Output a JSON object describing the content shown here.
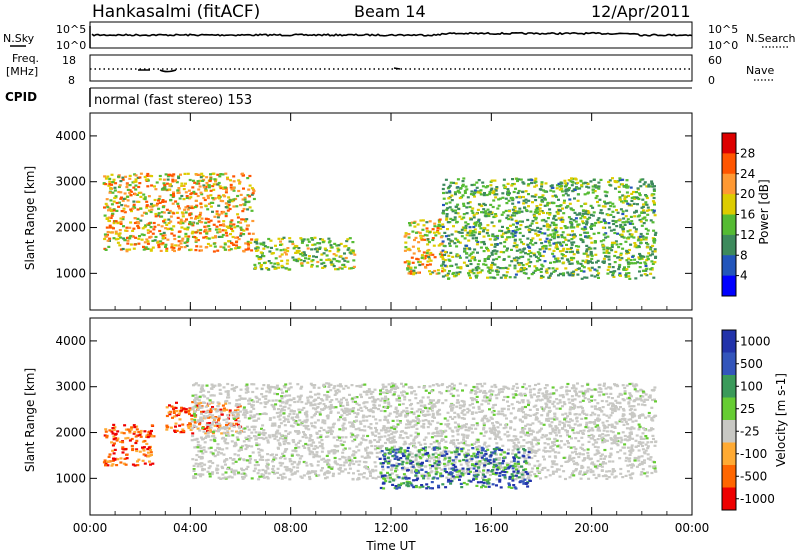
{
  "header": {
    "station": "Hankasalmi (fitACF)",
    "beam": "Beam 14",
    "date": "12/Apr/2011"
  },
  "noise_panel": {
    "left_label": "N.Sky",
    "right_label": "N.Search",
    "left_ticks": [
      "10^5",
      "10^0"
    ],
    "right_ticks": [
      "10^5",
      "10^0"
    ]
  },
  "freq_panel": {
    "left_label_1": "Freq.",
    "left_label_2": "[MHz]",
    "right_label": "Nave",
    "left_ticks": [
      "18",
      "8"
    ],
    "right_ticks": [
      "60",
      "0"
    ]
  },
  "cpid": {
    "label": "CPID",
    "value": "normal (fast stereo) 153"
  },
  "colors": {
    "power_scale": [
      "#0000ff",
      "#2255bb",
      "#3d8a5c",
      "#55bb33",
      "#ddcc00",
      "#ff9933",
      "#ff5500",
      "#dd0000"
    ],
    "velocity_scale": [
      "#2233aa",
      "#3355bb",
      "#3a9a5a",
      "#66cc33",
      "#c8c8c4",
      "#ffaa33",
      "#ff6600",
      "#ee0000"
    ],
    "ground_scatter": "#c8c8c4"
  },
  "chart_data": [
    {
      "type": "heatmap",
      "quantity": "Power",
      "ylabel": "Slant Range [km]",
      "y_ticks": [
        "1000",
        "2000",
        "3000",
        "4000"
      ],
      "ylim": [
        200,
        4500
      ],
      "x_ticks": [
        "00:00",
        "04:00",
        "08:00",
        "12:00",
        "16:00",
        "20:00",
        "00:00"
      ],
      "xlim_hours": [
        0,
        24
      ],
      "colorbar": {
        "label": "Power [dB]",
        "ticks": [
          "4",
          "8",
          "12",
          "16",
          "20",
          "24",
          "28"
        ]
      },
      "features": [
        {
          "x_hours": [
            0.5,
            6.5
          ],
          "range_km": [
            1500,
            3200
          ],
          "peak_db": 28
        },
        {
          "x_hours": [
            6.5,
            10.5
          ],
          "range_km": [
            1100,
            1800
          ],
          "peak_db": 22
        },
        {
          "x_hours": [
            12.5,
            14.0
          ],
          "range_km": [
            1000,
            2200
          ],
          "peak_db": 28
        },
        {
          "x_hours": [
            14.0,
            22.5
          ],
          "range_km": [
            900,
            3100
          ],
          "peak_db": 20
        }
      ]
    },
    {
      "type": "heatmap",
      "quantity": "Velocity",
      "ylabel": "Slant Range [km]",
      "y_ticks": [
        "1000",
        "2000",
        "3000",
        "4000"
      ],
      "ylim": [
        200,
        4500
      ],
      "x_ticks": [
        "00:00",
        "04:00",
        "08:00",
        "12:00",
        "16:00",
        "20:00",
        "00:00"
      ],
      "xlabel": "Time UT",
      "xlim_hours": [
        0,
        24
      ],
      "colorbar": {
        "label": "Velocity [m s-1]",
        "ticks": [
          "1000",
          "500",
          "100",
          "25",
          "-25",
          "-100",
          "-500",
          "-1000"
        ]
      },
      "features": [
        {
          "x_hours": [
            0.5,
            2.5
          ],
          "range_km": [
            1300,
            2200
          ],
          "velocity": -200
        },
        {
          "x_hours": [
            3.0,
            6.0
          ],
          "range_km": [
            2000,
            2700
          ],
          "velocity": -150
        },
        {
          "x_hours": [
            4.0,
            22.5
          ],
          "range_km": [
            1000,
            3100
          ],
          "velocity": 0
        },
        {
          "x_hours": [
            11.5,
            17.5
          ],
          "range_km": [
            800,
            1700
          ],
          "velocity": 200
        }
      ]
    }
  ]
}
